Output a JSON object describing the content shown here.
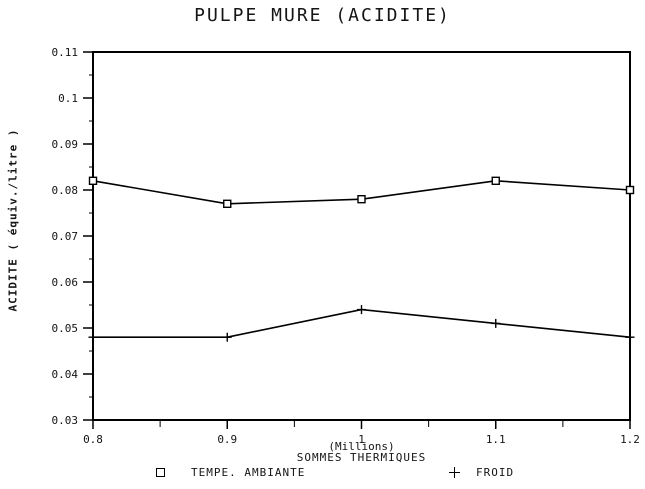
{
  "chart_data": {
    "type": "line",
    "title": "PULPE MURE (ACIDITE)",
    "xlabel": "SOMMES THERMIQUES",
    "x_unit_multiplier": "(Millions)",
    "ylabel": "ACIDITE ( équiv./litre )",
    "x": [
      0.8,
      0.9,
      1.0,
      1.1,
      1.2
    ],
    "x_tick_labels": [
      "0.8",
      "0.9",
      "1",
      "1.1",
      "1.2"
    ],
    "y_tick_labels": [
      "0.03",
      "0.04",
      "0.05",
      "0.06",
      "0.07",
      "0.08",
      "0.09",
      "0.1",
      "0.11"
    ],
    "xlim": [
      0.8,
      1.2
    ],
    "ylim": [
      0.03,
      0.11
    ],
    "grid": false,
    "legend_position": "bottom",
    "axis_color": "#000000",
    "background": "#ffffff",
    "series": [
      {
        "name": "TEMPE. AMBIANTE",
        "marker": "square",
        "color": "#000000",
        "values": [
          0.082,
          0.077,
          0.078,
          0.082,
          0.08
        ]
      },
      {
        "name": "FROID",
        "marker": "plus",
        "color": "#000000",
        "values": [
          0.048,
          0.048,
          0.054,
          0.051,
          0.048
        ]
      }
    ]
  }
}
